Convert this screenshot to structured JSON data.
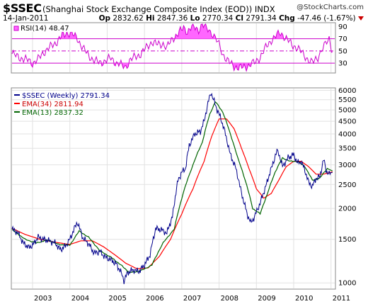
{
  "header": {
    "symbol": "$SSEC",
    "name": "(Shanghai Stock Exchange Composite Index (EOD))",
    "exchange": "INDX",
    "credit": "@StockCharts.com",
    "date": "14-Jan-2011",
    "open_label": "Op",
    "open": "2832.62",
    "high_label": "Hi",
    "high": "2847.36",
    "low_label": "Lo",
    "low": "2770.34",
    "close_label": "Cl",
    "close": "2791.34",
    "chg_label": "Chg",
    "chg": "-47.46 (-1.67%)"
  },
  "chart_data": [
    {
      "type": "line",
      "legend": "RSI(14) 48.47",
      "ylim": [
        15,
        95
      ],
      "y_ticks": [
        90,
        70,
        50,
        30
      ],
      "reference_lines": [
        70,
        50,
        30
      ],
      "color": "#cc00cc",
      "fill_color": "#ff66ff",
      "x": [
        2002.45,
        2002.55,
        2002.7,
        2002.9,
        2003.0,
        2003.15,
        2003.3,
        2003.45,
        2003.6,
        2003.8,
        2003.95,
        2004.05,
        2004.2,
        2004.35,
        2004.5,
        2004.65,
        2004.8,
        2004.95,
        2005.1,
        2005.25,
        2005.4,
        2005.5,
        2005.6,
        2005.75,
        2005.9,
        2006.05,
        2006.2,
        2006.35,
        2006.5,
        2006.6,
        2006.75,
        2006.9,
        2007.05,
        2007.15,
        2007.3,
        2007.45,
        2007.55,
        2007.7,
        2007.8,
        2007.9,
        2008.0,
        2008.1,
        2008.25,
        2008.4,
        2008.55,
        2008.7,
        2008.85,
        2008.95,
        2009.1,
        2009.25,
        2009.4,
        2009.55,
        2009.65,
        2009.8,
        2009.95,
        2010.1,
        2010.25,
        2010.4,
        2010.5,
        2010.65,
        2010.75,
        2010.85,
        2010.95,
        2011.04
      ],
      "values": [
        45,
        42,
        38,
        34,
        30,
        36,
        48,
        55,
        62,
        75,
        80,
        78,
        70,
        55,
        42,
        35,
        30,
        34,
        38,
        30,
        26,
        24,
        34,
        40,
        45,
        55,
        65,
        60,
        62,
        55,
        70,
        78,
        88,
        82,
        90,
        85,
        92,
        86,
        80,
        70,
        60,
        45,
        32,
        25,
        22,
        24,
        28,
        30,
        40,
        55,
        68,
        75,
        80,
        70,
        60,
        55,
        45,
        35,
        30,
        40,
        52,
        60,
        70,
        48.47
      ]
    },
    {
      "type": "line",
      "scale": "log",
      "ylim": [
        950,
        6100
      ],
      "y_ticks": [
        6000,
        5500,
        5000,
        4500,
        4000,
        3500,
        3000,
        2500,
        2000,
        1500,
        1000
      ],
      "x_ticks": [
        "2003",
        "2004",
        "2005",
        "2006",
        "2007",
        "2008",
        "2009",
        "2010",
        "2011"
      ],
      "xlim": [
        2002.45,
        2011.1
      ],
      "grid": true,
      "legend_position": "top-left",
      "series": [
        {
          "name": "$SSEC (Weekly) 2791.34",
          "color": "#00008b",
          "x": [
            2002.45,
            2002.6,
            2002.75,
            2002.9,
            2003.0,
            2003.15,
            2003.3,
            2003.45,
            2003.6,
            2003.75,
            2003.9,
            2004.0,
            2004.1,
            2004.2,
            2004.35,
            2004.5,
            2004.65,
            2004.8,
            2004.95,
            2005.1,
            2005.25,
            2005.4,
            2005.45,
            2005.55,
            2005.7,
            2005.85,
            2006.0,
            2006.15,
            2006.3,
            2006.45,
            2006.6,
            2006.75,
            2006.9,
            2007.0,
            2007.1,
            2007.2,
            2007.35,
            2007.5,
            2007.6,
            2007.7,
            2007.78,
            2007.85,
            2007.95,
            2008.05,
            2008.15,
            2008.3,
            2008.45,
            2008.6,
            2008.75,
            2008.85,
            2008.95,
            2009.1,
            2009.25,
            2009.4,
            2009.55,
            2009.6,
            2009.7,
            2009.85,
            2010.0,
            2010.1,
            2010.2,
            2010.3,
            2010.4,
            2010.5,
            2010.6,
            2010.7,
            2010.8,
            2010.87,
            2010.95,
            2011.04
          ],
          "values": [
            1650,
            1600,
            1450,
            1390,
            1420,
            1530,
            1500,
            1480,
            1450,
            1360,
            1420,
            1500,
            1630,
            1760,
            1520,
            1440,
            1320,
            1340,
            1270,
            1240,
            1190,
            1080,
            1020,
            1100,
            1130,
            1110,
            1180,
            1300,
            1660,
            1640,
            1590,
            1850,
            2600,
            2800,
            2900,
            3600,
            4000,
            4100,
            4500,
            5300,
            5900,
            5500,
            5000,
            4600,
            4100,
            3300,
            2900,
            2300,
            1900,
            1750,
            1850,
            2100,
            2450,
            2900,
            3400,
            3350,
            2950,
            3200,
            3300,
            3050,
            3100,
            2850,
            2550,
            2450,
            2650,
            2680,
            3150,
            2850,
            2750,
            2791.34
          ]
        },
        {
          "name": "EMA(34) 2811.94",
          "color": "#ff0000",
          "x": [
            2002.45,
            2002.8,
            2003.2,
            2003.6,
            2004.0,
            2004.3,
            2004.6,
            2004.9,
            2005.2,
            2005.5,
            2005.8,
            2006.1,
            2006.4,
            2006.7,
            2007.0,
            2007.3,
            2007.6,
            2007.8,
            2008.0,
            2008.2,
            2008.4,
            2008.6,
            2008.8,
            2009.0,
            2009.2,
            2009.4,
            2009.6,
            2009.8,
            2010.0,
            2010.2,
            2010.4,
            2010.6,
            2010.8,
            2011.04
          ],
          "values": [
            1660,
            1570,
            1500,
            1460,
            1430,
            1480,
            1480,
            1400,
            1300,
            1200,
            1140,
            1150,
            1280,
            1500,
            1900,
            2400,
            3100,
            3900,
            4600,
            4600,
            4200,
            3500,
            2900,
            2400,
            2200,
            2300,
            2600,
            2950,
            3100,
            3100,
            2950,
            2750,
            2750,
            2811.94
          ]
        },
        {
          "name": "EMA(13) 2837.32",
          "color": "#006400",
          "x": [
            2002.45,
            2002.8,
            2003.1,
            2003.4,
            2003.7,
            2004.0,
            2004.25,
            2004.5,
            2004.8,
            2005.1,
            2005.4,
            2005.6,
            2005.9,
            2006.2,
            2006.5,
            2006.8,
            2007.0,
            2007.3,
            2007.55,
            2007.75,
            2007.9,
            2008.1,
            2008.3,
            2008.5,
            2008.7,
            2008.9,
            2009.1,
            2009.3,
            2009.5,
            2009.7,
            2009.9,
            2010.1,
            2010.3,
            2010.5,
            2010.7,
            2010.9,
            2011.04
          ],
          "values": [
            1640,
            1500,
            1450,
            1490,
            1430,
            1420,
            1620,
            1530,
            1350,
            1270,
            1170,
            1100,
            1120,
            1180,
            1450,
            1650,
            2200,
            3000,
            3700,
            4800,
            5400,
            4900,
            4000,
            3200,
            2600,
            2000,
            1900,
            2300,
            2800,
            3200,
            3100,
            3100,
            2950,
            2600,
            2650,
            2900,
            2837.32
          ]
        }
      ]
    }
  ]
}
